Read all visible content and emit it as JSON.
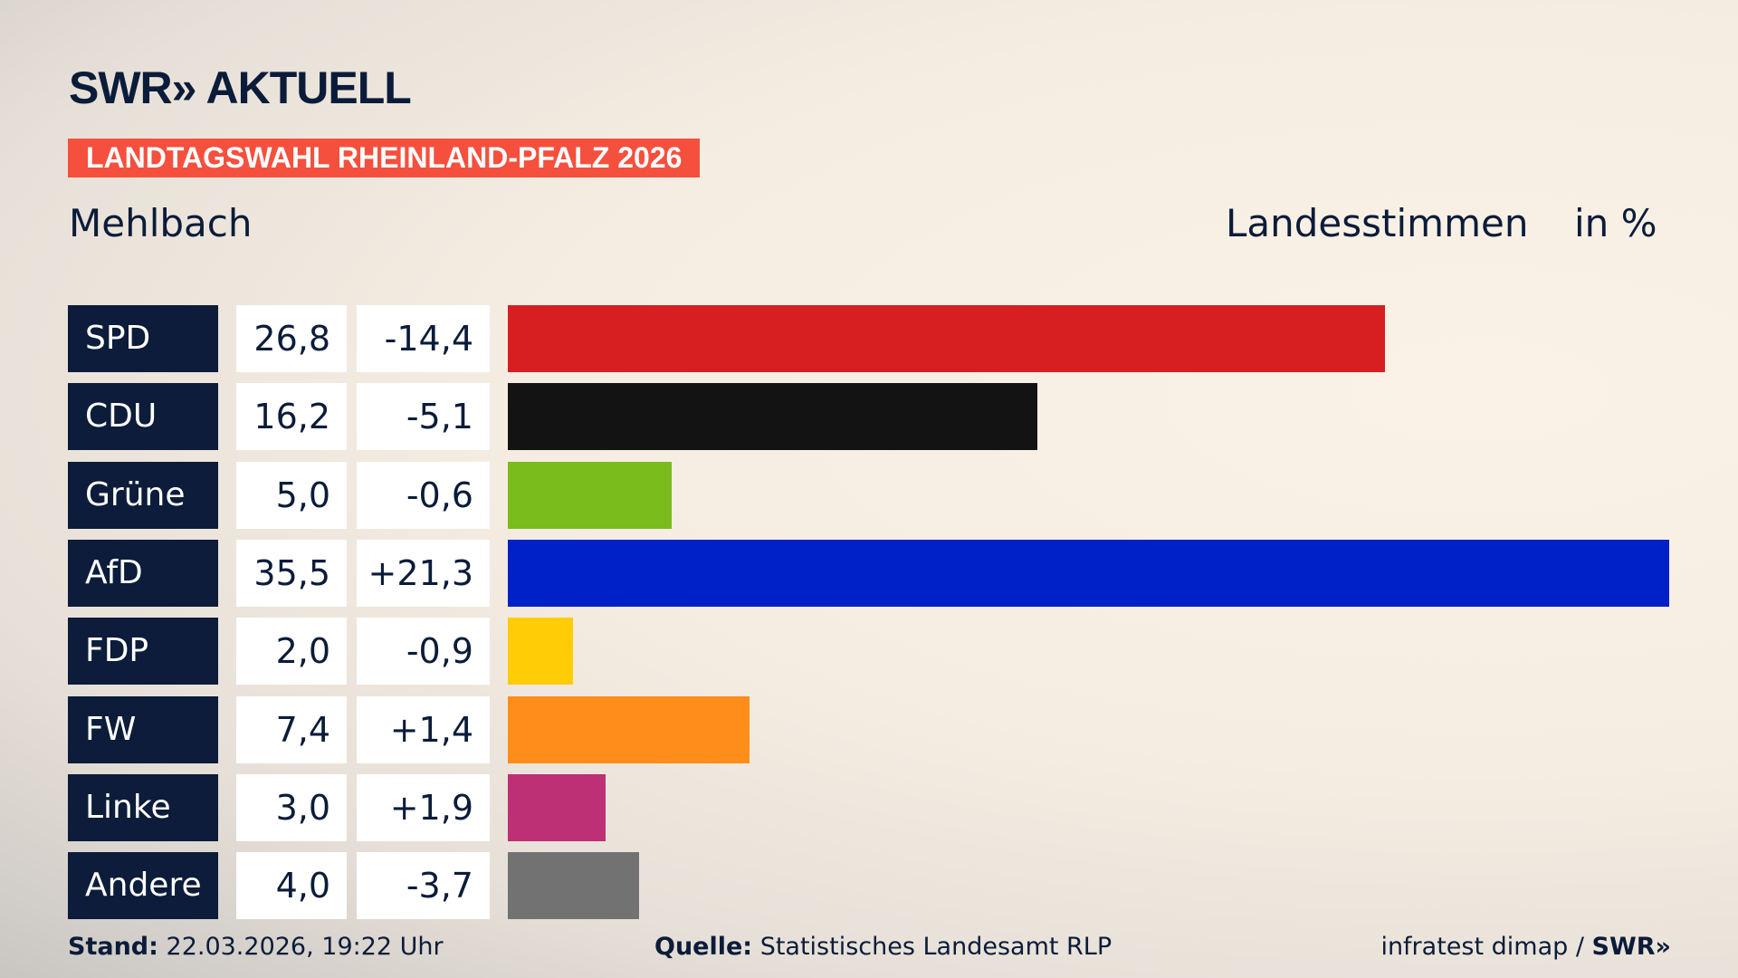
{
  "header": {
    "logo": "SWR» AKTUELL",
    "banner": "LANDTAGSWAHL RHEINLAND-PFALZ 2026",
    "location": "Mehlbach",
    "vote_type": "Landesstimmen",
    "unit": "in %"
  },
  "chart_data": {
    "type": "bar",
    "orientation": "horizontal",
    "categories": [
      "SPD",
      "CDU",
      "Grüne",
      "AfD",
      "FDP",
      "FW",
      "Linke",
      "Andere"
    ],
    "values": [
      26.8,
      16.2,
      5.0,
      35.5,
      2.0,
      7.4,
      3.0,
      4.0
    ],
    "value_labels": [
      "26,8",
      "16,2",
      "5,0",
      "35,5",
      "2,0",
      "7,4",
      "3,0",
      "4,0"
    ],
    "diff_labels": [
      "-14,4",
      "-5,1",
      "-0,6",
      "+21,3",
      "-0,9",
      "+1,4",
      "+1,9",
      "-3,7"
    ],
    "colors": [
      "#d71f21",
      "#131313",
      "#79bc1c",
      "#0021c7",
      "#ffcc05",
      "#ff8d19",
      "#bd3075",
      "#727272"
    ],
    "xlim": [
      0,
      35.5
    ]
  },
  "footer": {
    "stand_label": "Stand:",
    "stand_value": "22.03.2026, 19:22 Uhr",
    "source_label": "Quelle:",
    "source_value": "Statistisches Landesamt RLP",
    "credit": "infratest dimap / ",
    "credit_logo": "SWR»"
  }
}
